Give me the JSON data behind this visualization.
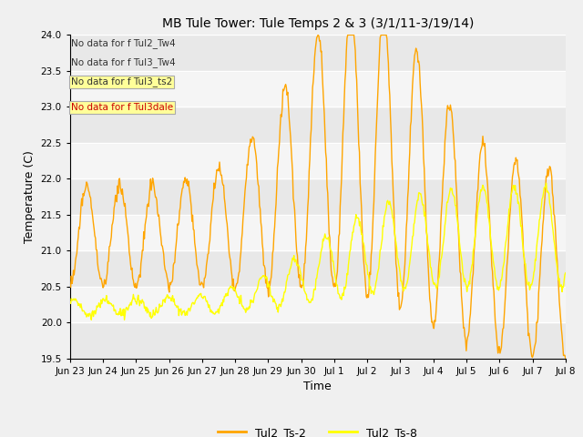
{
  "title": "MB Tule Tower: Tule Temps 2 & 3 (3/1/11-3/19/14)",
  "xlabel": "Time",
  "ylabel": "Temperature (C)",
  "ylim": [
    19.5,
    24.0
  ],
  "legend_labels": [
    "Tul2_Ts-2",
    "Tul2_Ts-8"
  ],
  "no_data_texts": [
    "No data for f Tul2_Tw4",
    "No data for f Tul3_Tw4",
    "No data for f Tul3_ts2",
    "No data for f Tul3dale"
  ],
  "no_data_box_color": "#FFFF99",
  "xtick_labels": [
    "Jun 23",
    "Jun 24",
    "Jun 25",
    "Jun 26",
    "Jun 27",
    "Jun 28",
    "Jun 29",
    "Jun 30",
    "Jul 1",
    "Jul 2",
    "Jul 3",
    "Jul 4",
    "Jul 5",
    "Jul 6",
    "Jul 7",
    "Jul 8"
  ],
  "background_color": "#f0f0f0",
  "ts2_color": "#FFA500",
  "ts8_color": "#FFFF00",
  "band_colors": [
    "#e8e8e8",
    "#f5f5f5"
  ],
  "ytick_vals": [
    19.5,
    20.0,
    20.5,
    21.0,
    21.5,
    22.0,
    22.5,
    23.0,
    23.5,
    24.0
  ]
}
